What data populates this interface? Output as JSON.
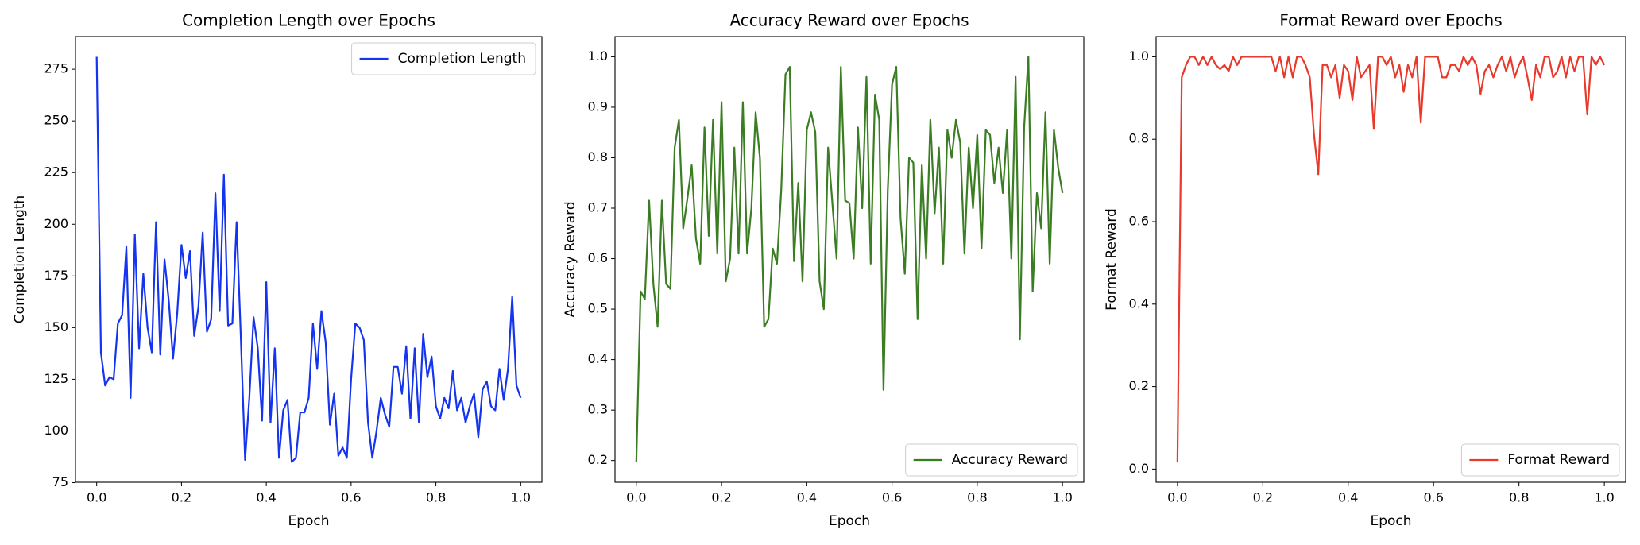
{
  "chart_data": [
    {
      "type": "line",
      "title": "Completion Length over Epochs",
      "x_label": "Epoch",
      "y_label": "Completion Length",
      "legend": "upper right",
      "x": [
        0,
        0.01,
        0.02,
        0.03,
        0.04,
        0.05,
        0.06,
        0.07,
        0.08,
        0.09,
        0.1,
        0.11,
        0.12,
        0.13,
        0.14,
        0.15,
        0.16,
        0.17,
        0.18,
        0.19,
        0.2,
        0.21,
        0.22,
        0.23,
        0.24,
        0.25,
        0.26,
        0.27,
        0.28,
        0.29,
        0.3,
        0.31,
        0.32,
        0.33,
        0.34,
        0.35,
        0.36,
        0.37,
        0.38,
        0.39,
        0.4,
        0.41,
        0.42,
        0.43,
        0.44,
        0.45,
        0.46,
        0.47,
        0.48,
        0.49,
        0.5,
        0.51,
        0.52,
        0.53,
        0.54,
        0.55,
        0.56,
        0.57,
        0.58,
        0.59,
        0.6,
        0.61,
        0.62,
        0.63,
        0.64,
        0.65,
        0.66,
        0.67,
        0.68,
        0.69,
        0.7,
        0.71,
        0.72,
        0.73,
        0.74,
        0.75,
        0.76,
        0.77,
        0.78,
        0.79,
        0.8,
        0.81,
        0.82,
        0.83,
        0.84,
        0.85,
        0.86,
        0.87,
        0.88,
        0.89,
        0.9,
        0.91,
        0.92,
        0.93,
        0.94,
        0.95,
        0.96,
        0.97,
        0.98,
        0.99,
        1
      ],
      "series": [
        {
          "name": "Completion Length",
          "color": "#1434f0",
          "values": [
            281,
            138,
            122,
            126,
            125,
            152,
            156,
            189,
            116,
            195,
            140,
            176,
            150,
            138,
            201,
            137,
            183,
            163,
            135,
            157,
            190,
            174,
            187,
            146,
            160,
            196,
            148,
            154,
            215,
            158,
            224,
            151,
            152,
            201,
            145,
            86,
            116,
            155,
            140,
            105,
            172,
            104,
            140,
            87,
            110,
            115,
            85,
            87,
            109,
            109,
            116,
            152,
            130,
            158,
            143,
            103,
            118,
            88,
            92,
            87,
            125,
            152,
            150,
            144,
            104,
            87,
            100,
            116,
            108,
            102,
            131,
            131,
            118,
            141,
            106,
            140,
            104,
            147,
            126,
            136,
            112,
            106,
            116,
            111,
            129,
            110,
            116,
            104,
            112,
            118,
            97,
            120,
            124,
            112,
            110,
            130,
            115,
            130,
            165,
            122,
            116
          ]
        }
      ],
      "xlim": [
        -0.05,
        1.05
      ],
      "ylim": [
        75.2,
        290.8
      ],
      "xticks": [
        {
          "value": 0,
          "label": "0.0"
        },
        0.2,
        0.4,
        0.6,
        0.8,
        {
          "value": 1,
          "label": "1.0"
        }
      ],
      "yticks": [
        75,
        100,
        125,
        150,
        175,
        200,
        225,
        250,
        275
      ]
    },
    {
      "type": "line",
      "title": "Accuracy Reward over Epochs",
      "x_label": "Epoch",
      "y_label": "Accuracy Reward",
      "legend": "lower right",
      "x": [
        0,
        0.01,
        0.02,
        0.03,
        0.04,
        0.05,
        0.06,
        0.07,
        0.08,
        0.09,
        0.1,
        0.11,
        0.12,
        0.13,
        0.14,
        0.15,
        0.16,
        0.17,
        0.18,
        0.19,
        0.2,
        0.21,
        0.22,
        0.23,
        0.24,
        0.25,
        0.26,
        0.27,
        0.28,
        0.29,
        0.3,
        0.31,
        0.32,
        0.33,
        0.34,
        0.35,
        0.36,
        0.37,
        0.38,
        0.39,
        0.4,
        0.41,
        0.42,
        0.43,
        0.44,
        0.45,
        0.46,
        0.47,
        0.48,
        0.49,
        0.5,
        0.51,
        0.52,
        0.53,
        0.54,
        0.55,
        0.56,
        0.57,
        0.58,
        0.59,
        0.6,
        0.61,
        0.62,
        0.63,
        0.64,
        0.65,
        0.66,
        0.67,
        0.68,
        0.69,
        0.7,
        0.71,
        0.72,
        0.73,
        0.74,
        0.75,
        0.76,
        0.77,
        0.78,
        0.79,
        0.8,
        0.81,
        0.82,
        0.83,
        0.84,
        0.85,
        0.86,
        0.87,
        0.88,
        0.89,
        0.9,
        0.91,
        0.92,
        0.93,
        0.94,
        0.95,
        0.96,
        0.97,
        0.98,
        0.99,
        1
      ],
      "series": [
        {
          "name": "Accuracy Reward",
          "color": "#3b7d23",
          "values": [
            0.197,
            0.535,
            0.52,
            0.715,
            0.55,
            0.465,
            0.715,
            0.55,
            0.54,
            0.82,
            0.875,
            0.66,
            0.72,
            0.785,
            0.64,
            0.59,
            0.86,
            0.645,
            0.875,
            0.61,
            0.91,
            0.555,
            0.6,
            0.82,
            0.61,
            0.91,
            0.61,
            0.7,
            0.89,
            0.8,
            0.465,
            0.48,
            0.62,
            0.59,
            0.735,
            0.965,
            0.98,
            0.595,
            0.75,
            0.555,
            0.855,
            0.89,
            0.85,
            0.555,
            0.5,
            0.82,
            0.71,
            0.6,
            0.98,
            0.715,
            0.71,
            0.6,
            0.86,
            0.7,
            0.96,
            0.59,
            0.925,
            0.875,
            0.34,
            0.735,
            0.945,
            0.98,
            0.68,
            0.57,
            0.8,
            0.79,
            0.48,
            0.785,
            0.6,
            0.875,
            0.69,
            0.82,
            0.59,
            0.855,
            0.8,
            0.875,
            0.83,
            0.61,
            0.82,
            0.7,
            0.845,
            0.62,
            0.855,
            0.845,
            0.75,
            0.82,
            0.73,
            0.855,
            0.6,
            0.96,
            0.44,
            0.86,
            1.0,
            0.535,
            0.73,
            0.66,
            0.89,
            0.59,
            0.855,
            0.78,
            0.73
          ]
        }
      ],
      "xlim": [
        -0.05,
        1.05
      ],
      "ylim": [
        0.157,
        1.04
      ],
      "xticks": [
        {
          "value": 0,
          "label": "0.0"
        },
        0.2,
        0.4,
        0.6,
        0.8,
        {
          "value": 1,
          "label": "1.0"
        }
      ],
      "yticks": [
        0.2,
        0.3,
        0.4,
        0.5,
        0.6,
        0.7,
        0.8,
        0.9,
        {
          "value": 1,
          "label": "1.0"
        }
      ]
    },
    {
      "type": "line",
      "title": "Format Reward over Epochs",
      "x_label": "Epoch",
      "y_label": "Format Reward",
      "legend": "lower right",
      "x": [
        0,
        0.01,
        0.02,
        0.03,
        0.04,
        0.05,
        0.06,
        0.07,
        0.08,
        0.09,
        0.1,
        0.11,
        0.12,
        0.13,
        0.14,
        0.15,
        0.16,
        0.17,
        0.18,
        0.19,
        0.2,
        0.21,
        0.22,
        0.23,
        0.24,
        0.25,
        0.26,
        0.27,
        0.28,
        0.29,
        0.3,
        0.31,
        0.32,
        0.33,
        0.34,
        0.35,
        0.36,
        0.37,
        0.38,
        0.39,
        0.4,
        0.41,
        0.42,
        0.43,
        0.44,
        0.45,
        0.46,
        0.47,
        0.48,
        0.49,
        0.5,
        0.51,
        0.52,
        0.53,
        0.54,
        0.55,
        0.56,
        0.57,
        0.58,
        0.59,
        0.6,
        0.61,
        0.62,
        0.63,
        0.64,
        0.65,
        0.66,
        0.67,
        0.68,
        0.69,
        0.7,
        0.71,
        0.72,
        0.73,
        0.74,
        0.75,
        0.76,
        0.77,
        0.78,
        0.79,
        0.8,
        0.81,
        0.82,
        0.83,
        0.84,
        0.85,
        0.86,
        0.87,
        0.88,
        0.89,
        0.9,
        0.91,
        0.92,
        0.93,
        0.94,
        0.95,
        0.96,
        0.97,
        0.98,
        0.99,
        1
      ],
      "series": [
        {
          "name": "Format Reward",
          "color": "#e8392a",
          "values": [
            0.017,
            0.95,
            0.98,
            1.0,
            1.0,
            0.98,
            1.0,
            0.98,
            1.0,
            0.98,
            0.97,
            0.98,
            0.965,
            1.0,
            0.98,
            1.0,
            1.0,
            1.0,
            1.0,
            1.0,
            1.0,
            1.0,
            1.0,
            0.965,
            1.0,
            0.95,
            1.0,
            0.95,
            1.0,
            1.0,
            0.98,
            0.95,
            0.81,
            0.715,
            0.98,
            0.98,
            0.95,
            0.98,
            0.9,
            0.98,
            0.965,
            0.895,
            1.0,
            0.95,
            0.965,
            0.98,
            0.825,
            1.0,
            1.0,
            0.98,
            1.0,
            0.95,
            0.98,
            0.915,
            0.98,
            0.95,
            1.0,
            0.84,
            1.0,
            1.0,
            1.0,
            1.0,
            0.95,
            0.95,
            0.98,
            0.98,
            0.965,
            1.0,
            0.98,
            1.0,
            0.98,
            0.91,
            0.965,
            0.98,
            0.95,
            0.98,
            1.0,
            0.965,
            1.0,
            0.95,
            0.98,
            1.0,
            0.95,
            0.895,
            0.98,
            0.95,
            1.0,
            1.0,
            0.95,
            0.965,
            1.0,
            0.95,
            1.0,
            0.965,
            1.0,
            1.0,
            0.86,
            1.0,
            0.98,
            1.0,
            0.98
          ]
        }
      ],
      "xlim": [
        -0.05,
        1.05
      ],
      "ylim": [
        -0.032,
        1.049
      ],
      "xticks": [
        {
          "value": 0,
          "label": "0.0"
        },
        0.2,
        0.4,
        0.6,
        0.8,
        {
          "value": 1,
          "label": "1.0"
        }
      ],
      "yticks": [
        {
          "value": 0,
          "label": "0.0"
        },
        0.2,
        0.4,
        0.6,
        0.8,
        {
          "value": 1,
          "label": "1.0"
        }
      ]
    }
  ]
}
